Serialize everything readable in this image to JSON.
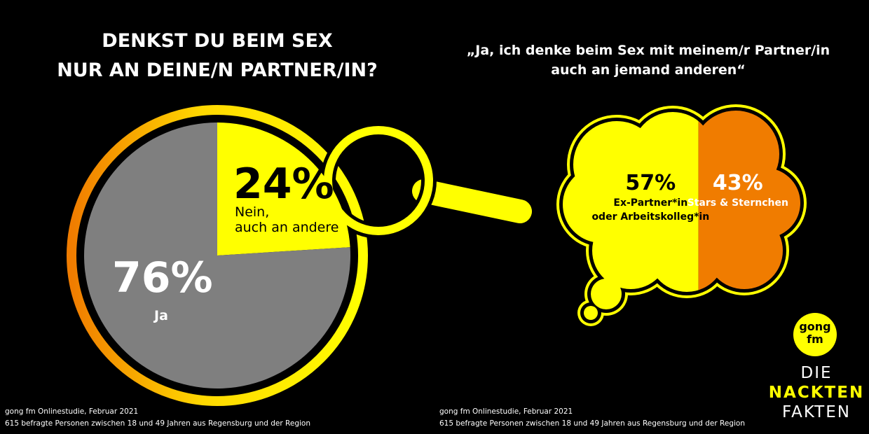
{
  "chart_data": [
    {
      "type": "pie",
      "title": "DENKST DU BEIM SEX\nNUR AN DEINE/N PARTNER/IN?",
      "categories": [
        "Nein,\nauch an andere",
        "Ja"
      ],
      "values": [
        24,
        76
      ],
      "value_labels": [
        "24%",
        "76%"
      ],
      "colors": [
        "#ffff00",
        "#7f7f7f"
      ]
    },
    {
      "type": "stacked",
      "title": "„Ja, ich denke beim Sex mit meinem/r Partner/in\nauch an jemand anderen“",
      "categories": [
        "Ex-Partner*in\noder Arbeitskolleg*in",
        "Stars & Sternchen"
      ],
      "values": [
        57,
        43
      ],
      "value_labels": [
        "57%",
        "43%"
      ],
      "colors": [
        "#ffff00",
        "#f07c00"
      ]
    }
  ],
  "footer": {
    "left": [
      "gong fm Onlinestudie, Februar 2021",
      "615 befragte Personen zwischen 18 und 49 Jahren aus Regensburg und der Region"
    ],
    "right": [
      "gong fm Onlinestudie, Februar 2021",
      "615 befragte Personen zwischen 18 und 49 Jahren aus Regensburg und der Region"
    ]
  },
  "logo": {
    "badge": "gong\nfm",
    "lines": [
      "DIE",
      "NACKTEN",
      "FAKTEN"
    ]
  }
}
